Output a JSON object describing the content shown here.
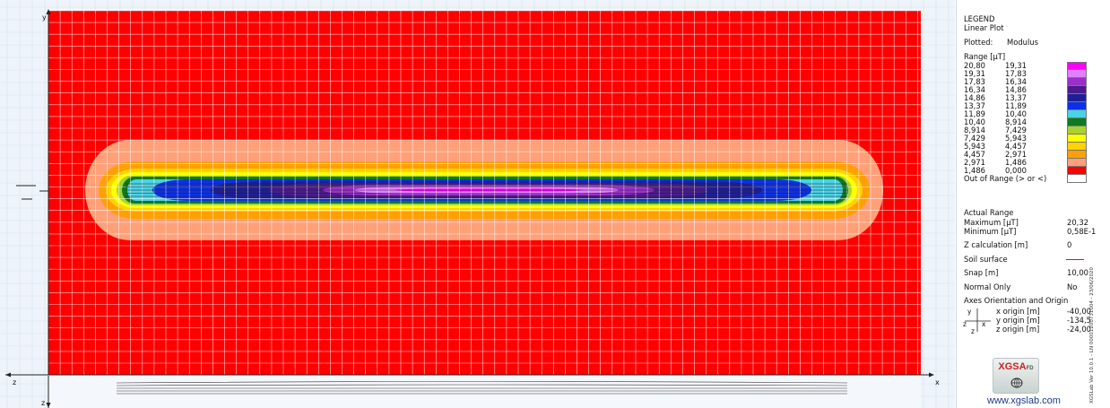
{
  "chart_data": {
    "type": "heatmap",
    "title": "LEGEND",
    "subtitle": "Linear Plot",
    "plotted_label": "Plotted:",
    "plotted_value": "Modulus",
    "range_label": "Range [µT]",
    "bands": [
      {
        "from": "20,80",
        "to": "19,31",
        "color": "#ff00ff"
      },
      {
        "from": "19,31",
        "to": "17,83",
        "color": "#e080ff"
      },
      {
        "from": "17,83",
        "to": "16,34",
        "color": "#9b30c8"
      },
      {
        "from": "16,34",
        "to": "14,86",
        "color": "#4b1a8c"
      },
      {
        "from": "14,86",
        "to": "13,37",
        "color": "#1e1e96"
      },
      {
        "from": "13,37",
        "to": "11,89",
        "color": "#0c30e6"
      },
      {
        "from": "11,89",
        "to": "10,40",
        "color": "#4ad2e6"
      },
      {
        "from": "10,40",
        "to": "8,914",
        "color": "#0e7a1e"
      },
      {
        "from": "8,914",
        "to": "7,429",
        "color": "#a8d232"
      },
      {
        "from": "7,429",
        "to": "5,943",
        "color": "#ffff00"
      },
      {
        "from": "5,943",
        "to": "4,457",
        "color": "#ffd200"
      },
      {
        "from": "4,457",
        "to": "2,971",
        "color": "#ffa000"
      },
      {
        "from": "2,971",
        "to": "1,486",
        "color": "#ffa078"
      },
      {
        "from": "1,486",
        "to": "0,000",
        "color": "#ff0000"
      }
    ],
    "out_of_range_label": "Out of Range (> or <)",
    "out_of_range_color": "#ffffff",
    "actual_range_label": "Actual Range",
    "maximum_label": "Maximum [µT]",
    "maximum_value": "20,32",
    "minimum_label": "Minimum [µT]",
    "minimum_value": "0,58E-1",
    "z_calc_label": "Z calculation [m]",
    "z_calc_value": "0",
    "soil_label": "Soil surface",
    "soil_color": "#c02020",
    "snap_label": "Snap [m]",
    "snap_value": "10,00",
    "normal_only_label": "Normal Only",
    "normal_only_value": "No",
    "axes_label": "Axes Orientation and Origin",
    "origins": [
      {
        "label": "x origin [m]",
        "value": "-40,00"
      },
      {
        "label": "y origin [m]",
        "value": "-134,5"
      },
      {
        "label": "z origin [m]",
        "value": "-24,00"
      }
    ],
    "mini_axes": {
      "y": "y",
      "z": "z",
      "x": "x",
      "z2": "z"
    },
    "axis_labels": {
      "y_top": "y",
      "z_left": "z",
      "x_right": "x",
      "z_bottom": "z"
    },
    "background_color": "#ff0000",
    "grid": true
  },
  "branding": {
    "logo_text": "XGSA",
    "logo_sub": "FD",
    "website": "www.xgslab.com",
    "side_text": "XGSLab Ver 10.0.1 - LN 00001200731004 - 23/06/2020"
  }
}
